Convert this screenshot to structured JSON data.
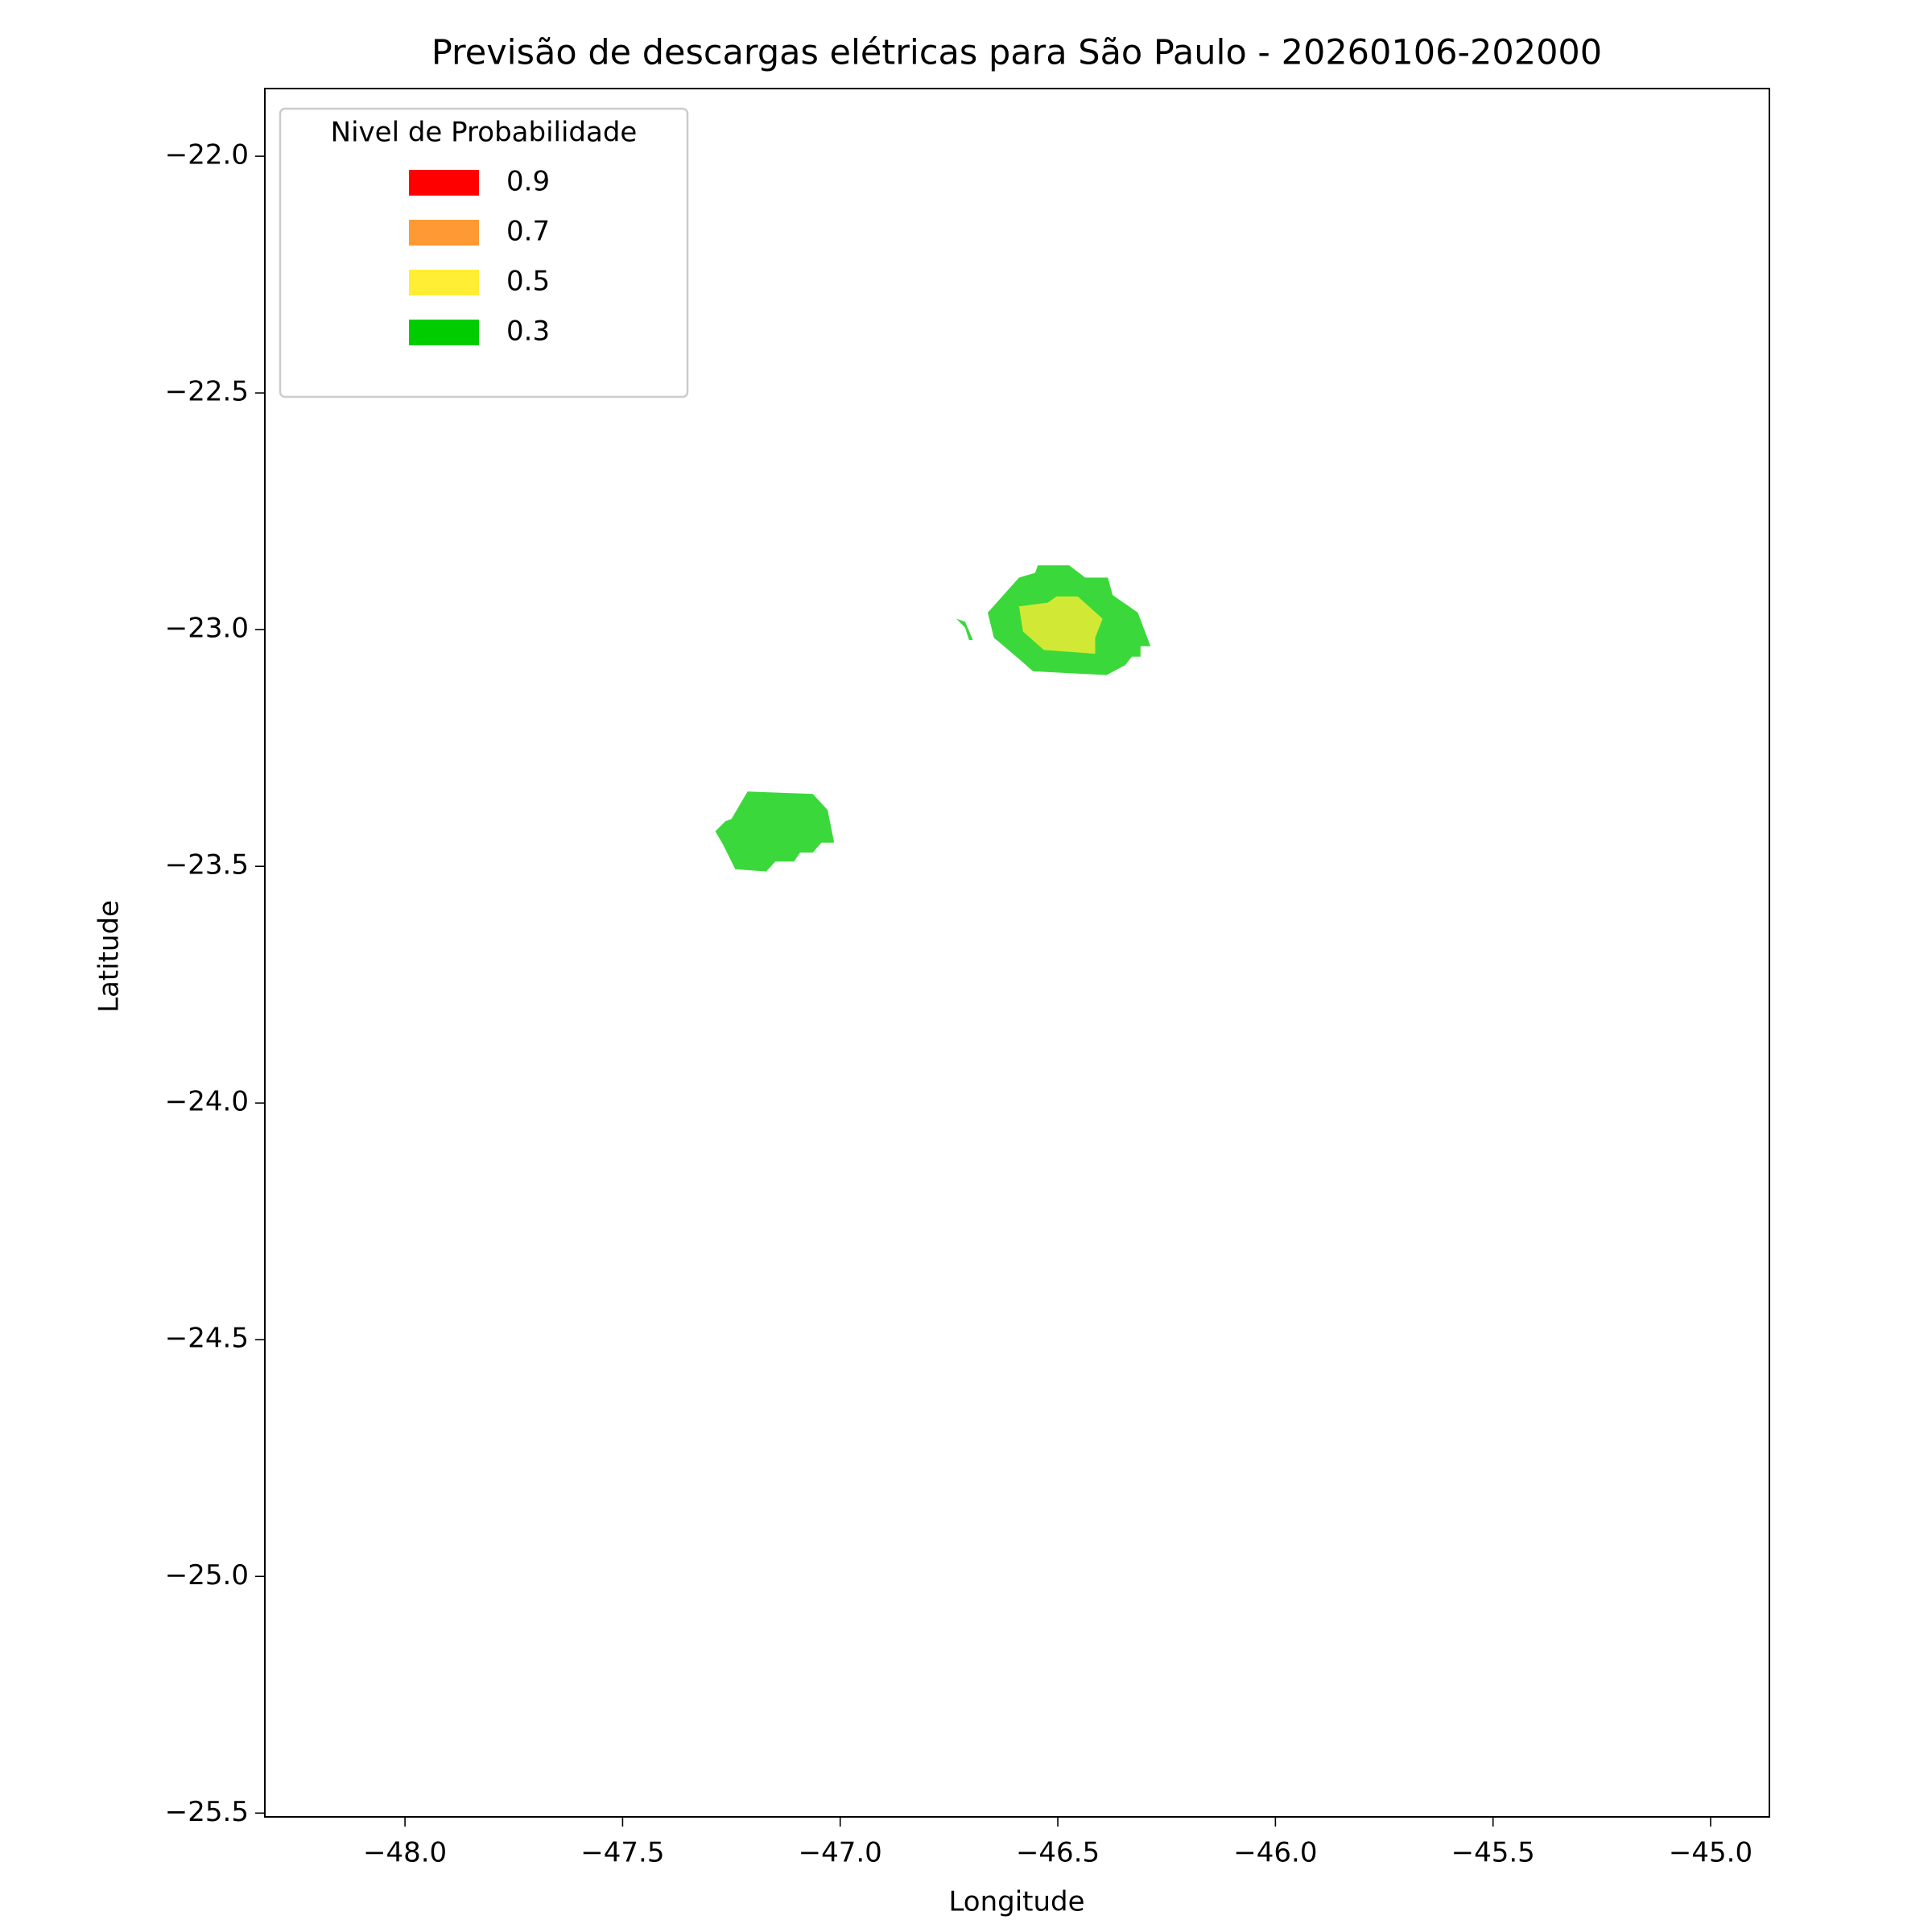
{
  "chart_data": {
    "type": "contour",
    "title": "Previsão de descargas elétricas para São Paulo - 20260106-202000",
    "x_label": "Longitude",
    "y_label": "Latitude",
    "legend_title": "Nivel de Probabilidade",
    "legend_loc": "upper left",
    "alpha": 0.77,
    "xlim": [
      -48.322,
      -44.865
    ],
    "ylim": [
      -25.508,
      -21.857
    ],
    "xticks": [
      {
        "value": -48.0,
        "label": "−48.0"
      },
      {
        "value": -47.5,
        "label": "−47.5"
      },
      {
        "value": -47.0,
        "label": "−47.0"
      },
      {
        "value": -46.5,
        "label": "−46.5"
      },
      {
        "value": -46.0,
        "label": "−46.0"
      },
      {
        "value": -45.5,
        "label": "−45.5"
      },
      {
        "value": -45.0,
        "label": "−45.0"
      }
    ],
    "yticks": [
      {
        "value": -22.0,
        "label": "−22.0"
      },
      {
        "value": -22.5,
        "label": "−22.5"
      },
      {
        "value": -23.0,
        "label": "−23.0"
      },
      {
        "value": -23.5,
        "label": "−23.5"
      },
      {
        "value": -24.0,
        "label": "−24.0"
      },
      {
        "value": -24.5,
        "label": "−24.5"
      },
      {
        "value": -25.0,
        "label": "−25.0"
      },
      {
        "value": -25.5,
        "label": "−25.5"
      }
    ],
    "series": [
      {
        "name": "0.9",
        "color": "#ff0000",
        "x": [],
        "y": []
      },
      {
        "name": "0.7",
        "color": "#ff9933",
        "x": [],
        "y": []
      },
      {
        "name": "0.5",
        "color": "#ffee33",
        "x": [
          -46.589,
          -46.523,
          -46.503,
          -46.454,
          -46.397,
          -46.414,
          -46.414,
          -46.532,
          -46.58
        ],
        "y": [
          -22.951,
          -22.943,
          -22.93,
          -22.93,
          -22.977,
          -23.017,
          -23.051,
          -23.043,
          -23.004
        ]
      },
      {
        "name": "0.3",
        "color": "#00cc00",
        "x": [
          -46.661,
          -46.589,
          -46.552,
          -46.546,
          -46.474,
          -46.437,
          -46.385,
          -46.374,
          -46.316,
          -46.287,
          -46.31,
          -46.31,
          -46.33,
          -46.345,
          -46.388,
          -46.557,
          -46.589,
          -46.647,
          null,
          -46.733,
          -46.713,
          -46.695,
          -46.704,
          -46.713,
          null,
          -47.25,
          -47.213,
          -47.063,
          -47.029,
          -47.014,
          -47.043,
          -47.063,
          -47.092,
          -47.106,
          -47.149,
          -47.17,
          -47.241,
          -47.27,
          -47.287,
          -47.264
        ],
        "y": [
          -22.964,
          -22.89,
          -22.88,
          -22.864,
          -22.864,
          -22.89,
          -22.89,
          -22.927,
          -22.964,
          -23.035,
          -23.035,
          -23.057,
          -23.057,
          -23.075,
          -23.096,
          -23.088,
          -23.062,
          -23.017,
          null,
          -22.977,
          -22.983,
          -23.022,
          -23.022,
          -22.996,
          null,
          -23.4,
          -23.342,
          -23.347,
          -23.381,
          -23.45,
          -23.45,
          -23.471,
          -23.471,
          -23.49,
          -23.49,
          -23.511,
          -23.506,
          -23.453,
          -23.426,
          -23.405
        ]
      }
    ]
  }
}
